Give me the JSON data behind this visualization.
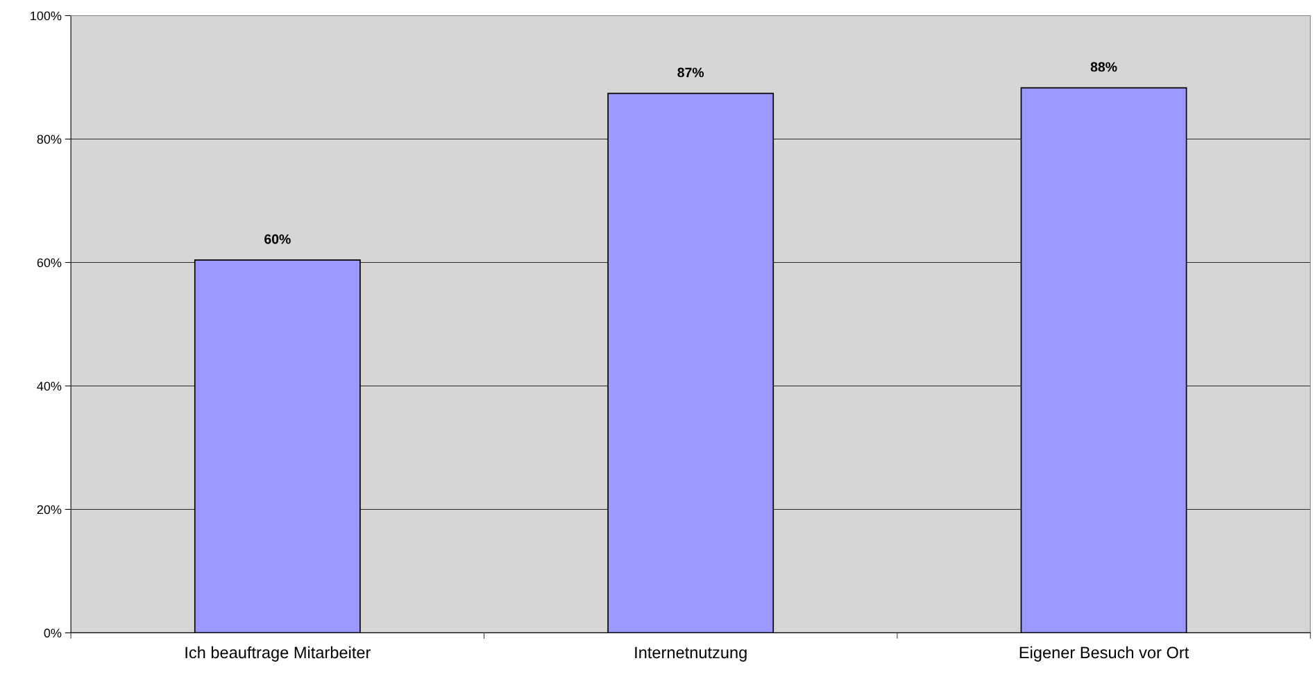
{
  "chart_data": {
    "type": "bar",
    "categories": [
      "Ich beauftrage Mitarbeiter",
      "Internetnutzung",
      "Eigener Besuch vor Ort"
    ],
    "values": [
      60.4,
      87.4,
      88.3
    ],
    "value_labels": [
      "60%",
      "87%",
      "88%"
    ],
    "color": "#9999ff",
    "ylim": [
      0,
      100
    ],
    "yticks": [
      {
        "value": 0,
        "label": "0%"
      },
      {
        "value": 20,
        "label": "20%"
      },
      {
        "value": 40,
        "label": "40%"
      },
      {
        "value": 60,
        "label": "60%"
      },
      {
        "value": 80,
        "label": "80%"
      },
      {
        "value": 100,
        "label": "100%"
      }
    ],
    "grid": "y",
    "legend": false
  }
}
